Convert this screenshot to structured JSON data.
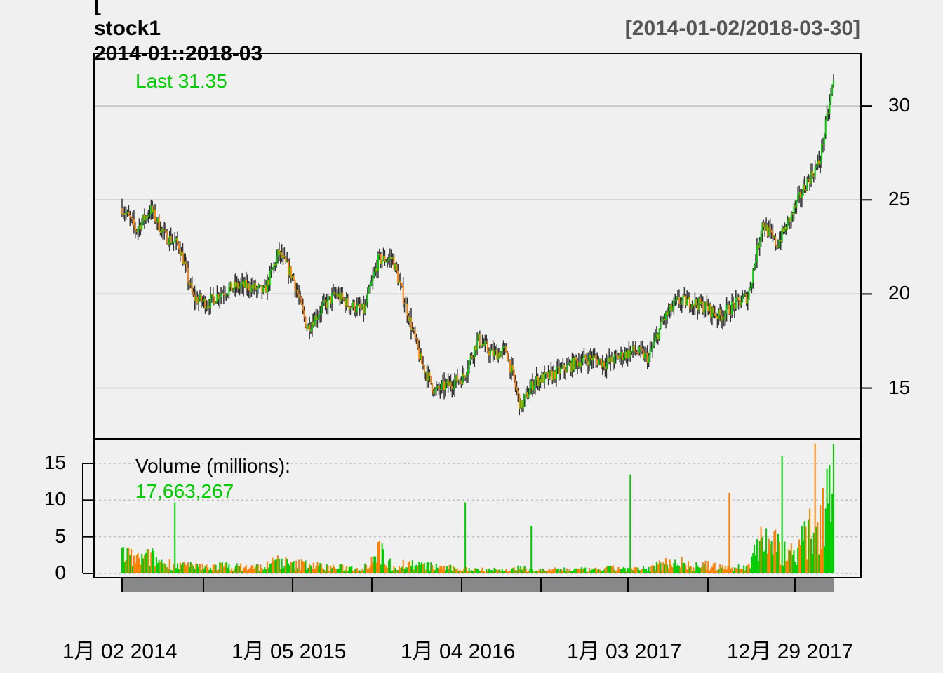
{
  "title": {
    "line1": "[",
    "line2": "stock1",
    "line3": "2014-01::2018-03",
    "date_range": "[2014-01-02/2018-03-30]"
  },
  "price_panel": {
    "last_label": "Last 31.35",
    "last_value": 31.35,
    "ylim": [
      12.3,
      32.8
    ],
    "yticks": [
      15,
      20,
      25,
      30
    ]
  },
  "volume_panel": {
    "label": "Volume (millions):",
    "last_value_label": "17,663,267",
    "ylim": [
      0,
      18
    ],
    "yticks": [
      0,
      5,
      10,
      15
    ]
  },
  "x_axis": {
    "labels": [
      "1月 02 2014",
      "1月 05 2015",
      "1月 04 2016",
      "1月 03 2017",
      "12月 29 2017"
    ]
  },
  "colors": {
    "up": "#00cc00",
    "down": "#ff7f00",
    "wick": "#333333",
    "grid": "#bdbdbd",
    "axis_bar": "#888888",
    "text": "#000000",
    "subtitle": "#555555",
    "label_green": "#00cc00"
  },
  "chart_data": {
    "type": "line",
    "series": [
      {
        "name": "stock1",
        "x": [
          "2014-01-02",
          "2014-02-01",
          "2014-03-01",
          "2014-04-01",
          "2014-05-01",
          "2014-06-01",
          "2014-07-01",
          "2014-08-01",
          "2014-09-01",
          "2014-10-01",
          "2014-11-01",
          "2014-12-01",
          "2015-01-01",
          "2015-02-01",
          "2015-03-01",
          "2015-04-01",
          "2015-05-01",
          "2015-06-01",
          "2015-07-01",
          "2015-08-01",
          "2015-09-01",
          "2015-10-01",
          "2015-11-01",
          "2015-12-01",
          "2016-01-01",
          "2016-02-01",
          "2016-03-01",
          "2016-04-01",
          "2016-05-01",
          "2016-06-01",
          "2016-07-01",
          "2016-08-01",
          "2016-09-01",
          "2016-10-01",
          "2016-11-01",
          "2016-12-01",
          "2017-01-01",
          "2017-02-01",
          "2017-03-01",
          "2017-04-01",
          "2017-05-01",
          "2017-06-01",
          "2017-07-01",
          "2017-08-01",
          "2017-09-01",
          "2017-10-01",
          "2017-11-01",
          "2017-12-01",
          "2018-01-01",
          "2018-02-01",
          "2018-03-30"
        ],
        "values": [
          24.6,
          23.4,
          24.5,
          23.1,
          22.6,
          19.8,
          19.5,
          20.1,
          20.4,
          20.4,
          20.1,
          22.2,
          20.9,
          18.2,
          19.2,
          20.0,
          19.4,
          19.1,
          21.8,
          21.9,
          19.2,
          16.4,
          14.8,
          15.2,
          15.6,
          17.6,
          16.8,
          17.0,
          14.0,
          15.4,
          15.6,
          16.0,
          16.4,
          16.6,
          16.3,
          16.7,
          17.0,
          16.6,
          18.6,
          19.6,
          19.6,
          19.3,
          18.8,
          19.4,
          19.9,
          23.8,
          22.6,
          24.1,
          25.8,
          27.0,
          31.35
        ]
      }
    ],
    "volume": {
      "x": [
        "2014-01-02",
        "2014-02-01",
        "2014-03-01",
        "2014-04-01",
        "2014-05-01",
        "2014-06-01",
        "2014-07-01",
        "2014-08-01",
        "2014-09-01",
        "2014-10-01",
        "2014-11-01",
        "2014-12-01",
        "2015-01-01",
        "2015-02-01",
        "2015-03-01",
        "2015-04-01",
        "2015-05-01",
        "2015-06-01",
        "2015-07-01",
        "2015-08-01",
        "2015-09-01",
        "2015-10-01",
        "2015-11-01",
        "2015-12-01",
        "2016-01-01",
        "2016-02-01",
        "2016-03-01",
        "2016-04-01",
        "2016-05-01",
        "2016-06-01",
        "2016-07-01",
        "2016-08-01",
        "2016-09-01",
        "2016-10-01",
        "2016-11-01",
        "2016-12-01",
        "2017-01-01",
        "2017-02-01",
        "2017-03-01",
        "2017-04-01",
        "2017-05-01",
        "2017-06-01",
        "2017-07-01",
        "2017-08-01",
        "2017-09-01",
        "2017-10-01",
        "2017-11-01",
        "2017-12-01",
        "2018-01-01",
        "2018-02-01",
        "2018-03-30"
      ],
      "values": [
        3.0,
        2.0,
        2.5,
        1.5,
        1.3,
        1.0,
        1.0,
        1.2,
        1.0,
        0.9,
        1.0,
        2.0,
        1.2,
        1.5,
        1.0,
        0.9,
        0.8,
        0.9,
        3.5,
        1.0,
        1.5,
        1.2,
        1.0,
        0.8,
        0.6,
        0.7,
        0.6,
        0.5,
        0.8,
        0.5,
        0.5,
        0.6,
        0.6,
        0.5,
        0.7,
        0.8,
        0.6,
        0.7,
        1.5,
        2.0,
        1.0,
        1.2,
        0.9,
        0.8,
        1.0,
        6.0,
        4.0,
        3.0,
        5.0,
        8.0,
        17.66
      ]
    },
    "xlabel": "",
    "ylabel": "",
    "grid": true
  }
}
